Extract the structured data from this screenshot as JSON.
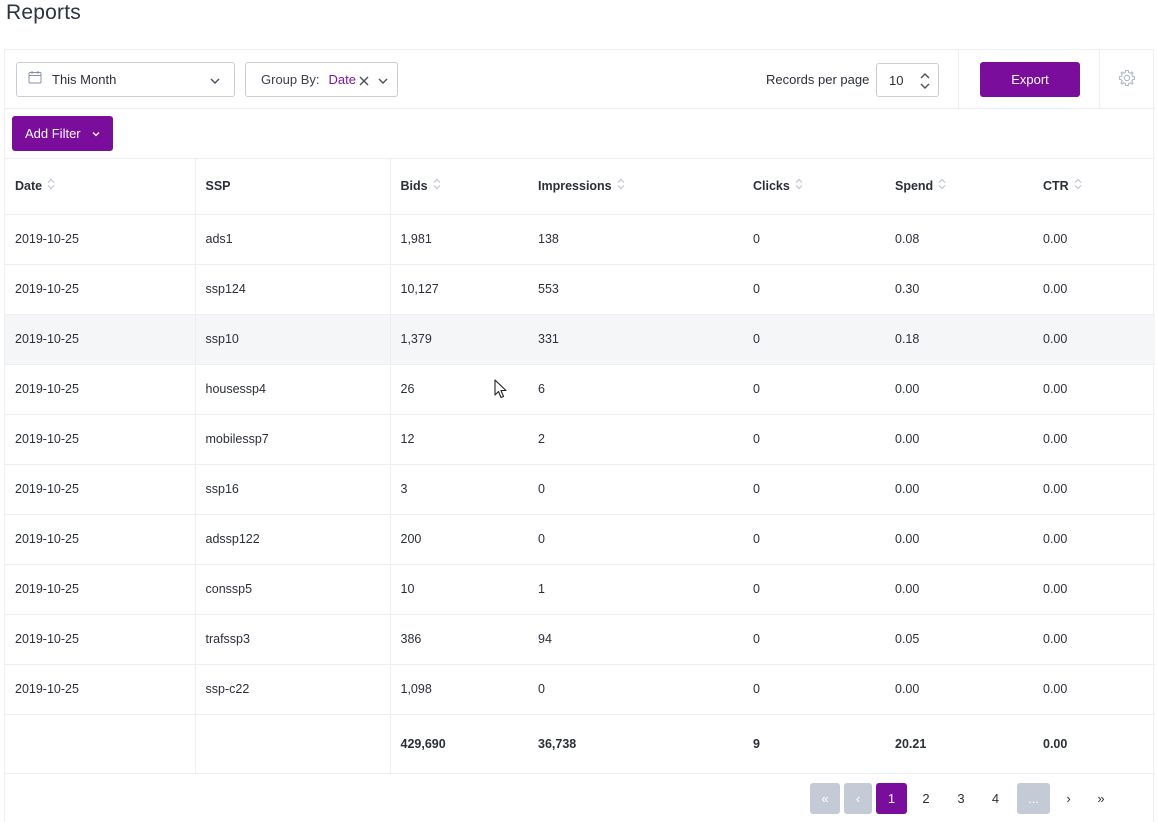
{
  "page": {
    "title": "Reports"
  },
  "toolbar": {
    "date_range": "This Month",
    "group_by_label": "Group By:",
    "group_by_value": "Date",
    "records_per_page_label": "Records per page",
    "records_per_page_value": "10",
    "export_label": "Export"
  },
  "filters": {
    "add_filter_label": "Add Filter"
  },
  "table": {
    "columns": [
      "Date",
      "SSP",
      "Bids",
      "Impressions",
      "Clicks",
      "Spend",
      "CTR"
    ],
    "rows": [
      [
        "2019-10-25",
        "ads1",
        "1,981",
        "138",
        "0",
        "0.08",
        "0.00"
      ],
      [
        "2019-10-25",
        "ssp124",
        "10,127",
        "553",
        "0",
        "0.30",
        "0.00"
      ],
      [
        "2019-10-25",
        "ssp10",
        "1,379",
        "331",
        "0",
        "0.18",
        "0.00"
      ],
      [
        "2019-10-25",
        "housessp4",
        "26",
        "6",
        "0",
        "0.00",
        "0.00"
      ],
      [
        "2019-10-25",
        "mobilessp7",
        "12",
        "2",
        "0",
        "0.00",
        "0.00"
      ],
      [
        "2019-10-25",
        "ssp16",
        "3",
        "0",
        "0",
        "0.00",
        "0.00"
      ],
      [
        "2019-10-25",
        "adssp122",
        "200",
        "0",
        "0",
        "0.00",
        "0.00"
      ],
      [
        "2019-10-25",
        "conssp5",
        "10",
        "1",
        "0",
        "0.00",
        "0.00"
      ],
      [
        "2019-10-25",
        "trafssp3",
        "386",
        "94",
        "0",
        "0.05",
        "0.00"
      ],
      [
        "2019-10-25",
        "ssp-c22",
        "1,098",
        "0",
        "0",
        "0.00",
        "0.00"
      ]
    ],
    "totals": [
      "",
      "",
      "429,690",
      "36,738",
      "9",
      "20.21",
      "0.00"
    ]
  },
  "pagination": {
    "first": "«",
    "prev": "‹",
    "pages": [
      "1",
      "2",
      "3",
      "4"
    ],
    "current": "1",
    "ellipsis": "...",
    "next": "›",
    "last": "»"
  },
  "colors": {
    "accent": "#7a0d9c",
    "disabled": "#c5cbd6",
    "border": "#eceef2",
    "highlight_row": "#f5f6f8"
  }
}
